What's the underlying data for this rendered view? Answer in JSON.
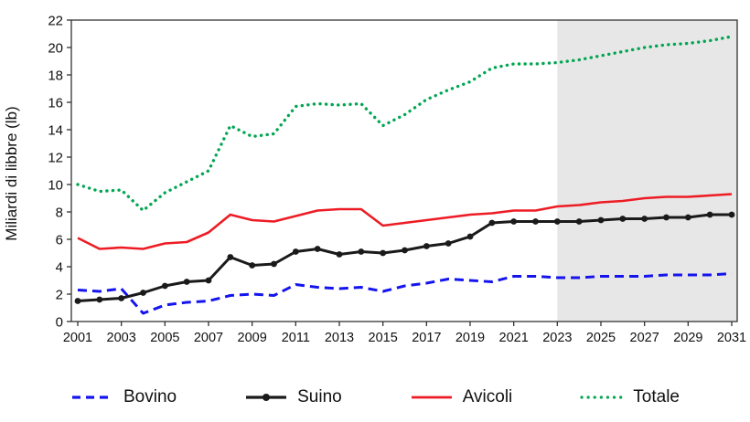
{
  "chart_data": {
    "type": "line",
    "title": "",
    "xlabel": "",
    "ylabel": "Miliardi di libbre (lb)",
    "ylim": [
      0,
      22
    ],
    "y_tick_step": 2,
    "x": [
      2001,
      2002,
      2003,
      2004,
      2005,
      2006,
      2007,
      2008,
      2009,
      2010,
      2011,
      2012,
      2013,
      2014,
      2015,
      2016,
      2017,
      2018,
      2019,
      2020,
      2021,
      2022,
      2023,
      2024,
      2025,
      2026,
      2027,
      2028,
      2029,
      2030,
      2031
    ],
    "x_tick_years": [
      2001,
      2003,
      2005,
      2007,
      2009,
      2011,
      2013,
      2015,
      2017,
      2019,
      2021,
      2023,
      2025,
      2027,
      2029,
      2031
    ],
    "grid": false,
    "legend_position": "bottom",
    "forecast_shade": {
      "from": 2023,
      "to": 2031,
      "color": "#e7e7e7"
    },
    "axis_color": "#333333",
    "series": [
      {
        "name": "Bovino",
        "color": "#1414ee",
        "style": "dashed",
        "values": [
          2.3,
          2.2,
          2.4,
          0.6,
          1.2,
          1.4,
          1.5,
          1.9,
          2.0,
          1.9,
          2.7,
          2.5,
          2.4,
          2.5,
          2.2,
          2.6,
          2.8,
          3.1,
          3.0,
          2.9,
          3.3,
          3.3,
          3.2,
          3.2,
          3.3,
          3.3,
          3.3,
          3.4,
          3.4,
          3.4,
          3.5
        ]
      },
      {
        "name": "Suino",
        "color": "#1a1a1a",
        "style": "solid-marker",
        "values": [
          1.5,
          1.6,
          1.7,
          2.1,
          2.6,
          2.9,
          3.0,
          4.7,
          4.1,
          4.2,
          5.1,
          5.3,
          4.9,
          5.1,
          5.0,
          5.2,
          5.5,
          5.7,
          6.2,
          7.2,
          7.3,
          7.3,
          7.3,
          7.3,
          7.4,
          7.5,
          7.5,
          7.6,
          7.6,
          7.8,
          7.8
        ]
      },
      {
        "name": "Avicoli",
        "color": "#ed1c24",
        "style": "solid",
        "values": [
          6.1,
          5.3,
          5.4,
          5.3,
          5.7,
          5.8,
          6.5,
          7.8,
          7.4,
          7.3,
          7.7,
          8.1,
          8.2,
          8.2,
          7.0,
          7.2,
          7.4,
          7.6,
          7.8,
          7.9,
          8.1,
          8.1,
          8.4,
          8.5,
          8.7,
          8.8,
          9.0,
          9.1,
          9.1,
          9.2,
          9.3
        ]
      },
      {
        "name": "Totale",
        "color": "#00a651",
        "style": "dotted",
        "values": [
          10.0,
          9.5,
          9.6,
          8.1,
          9.4,
          10.2,
          11.0,
          14.3,
          13.5,
          13.7,
          15.7,
          15.9,
          15.8,
          15.9,
          14.3,
          15.1,
          16.2,
          16.9,
          17.5,
          18.5,
          18.8,
          18.8,
          18.9,
          19.1,
          19.4,
          19.7,
          20.0,
          20.2,
          20.3,
          20.5,
          20.8
        ]
      }
    ]
  }
}
